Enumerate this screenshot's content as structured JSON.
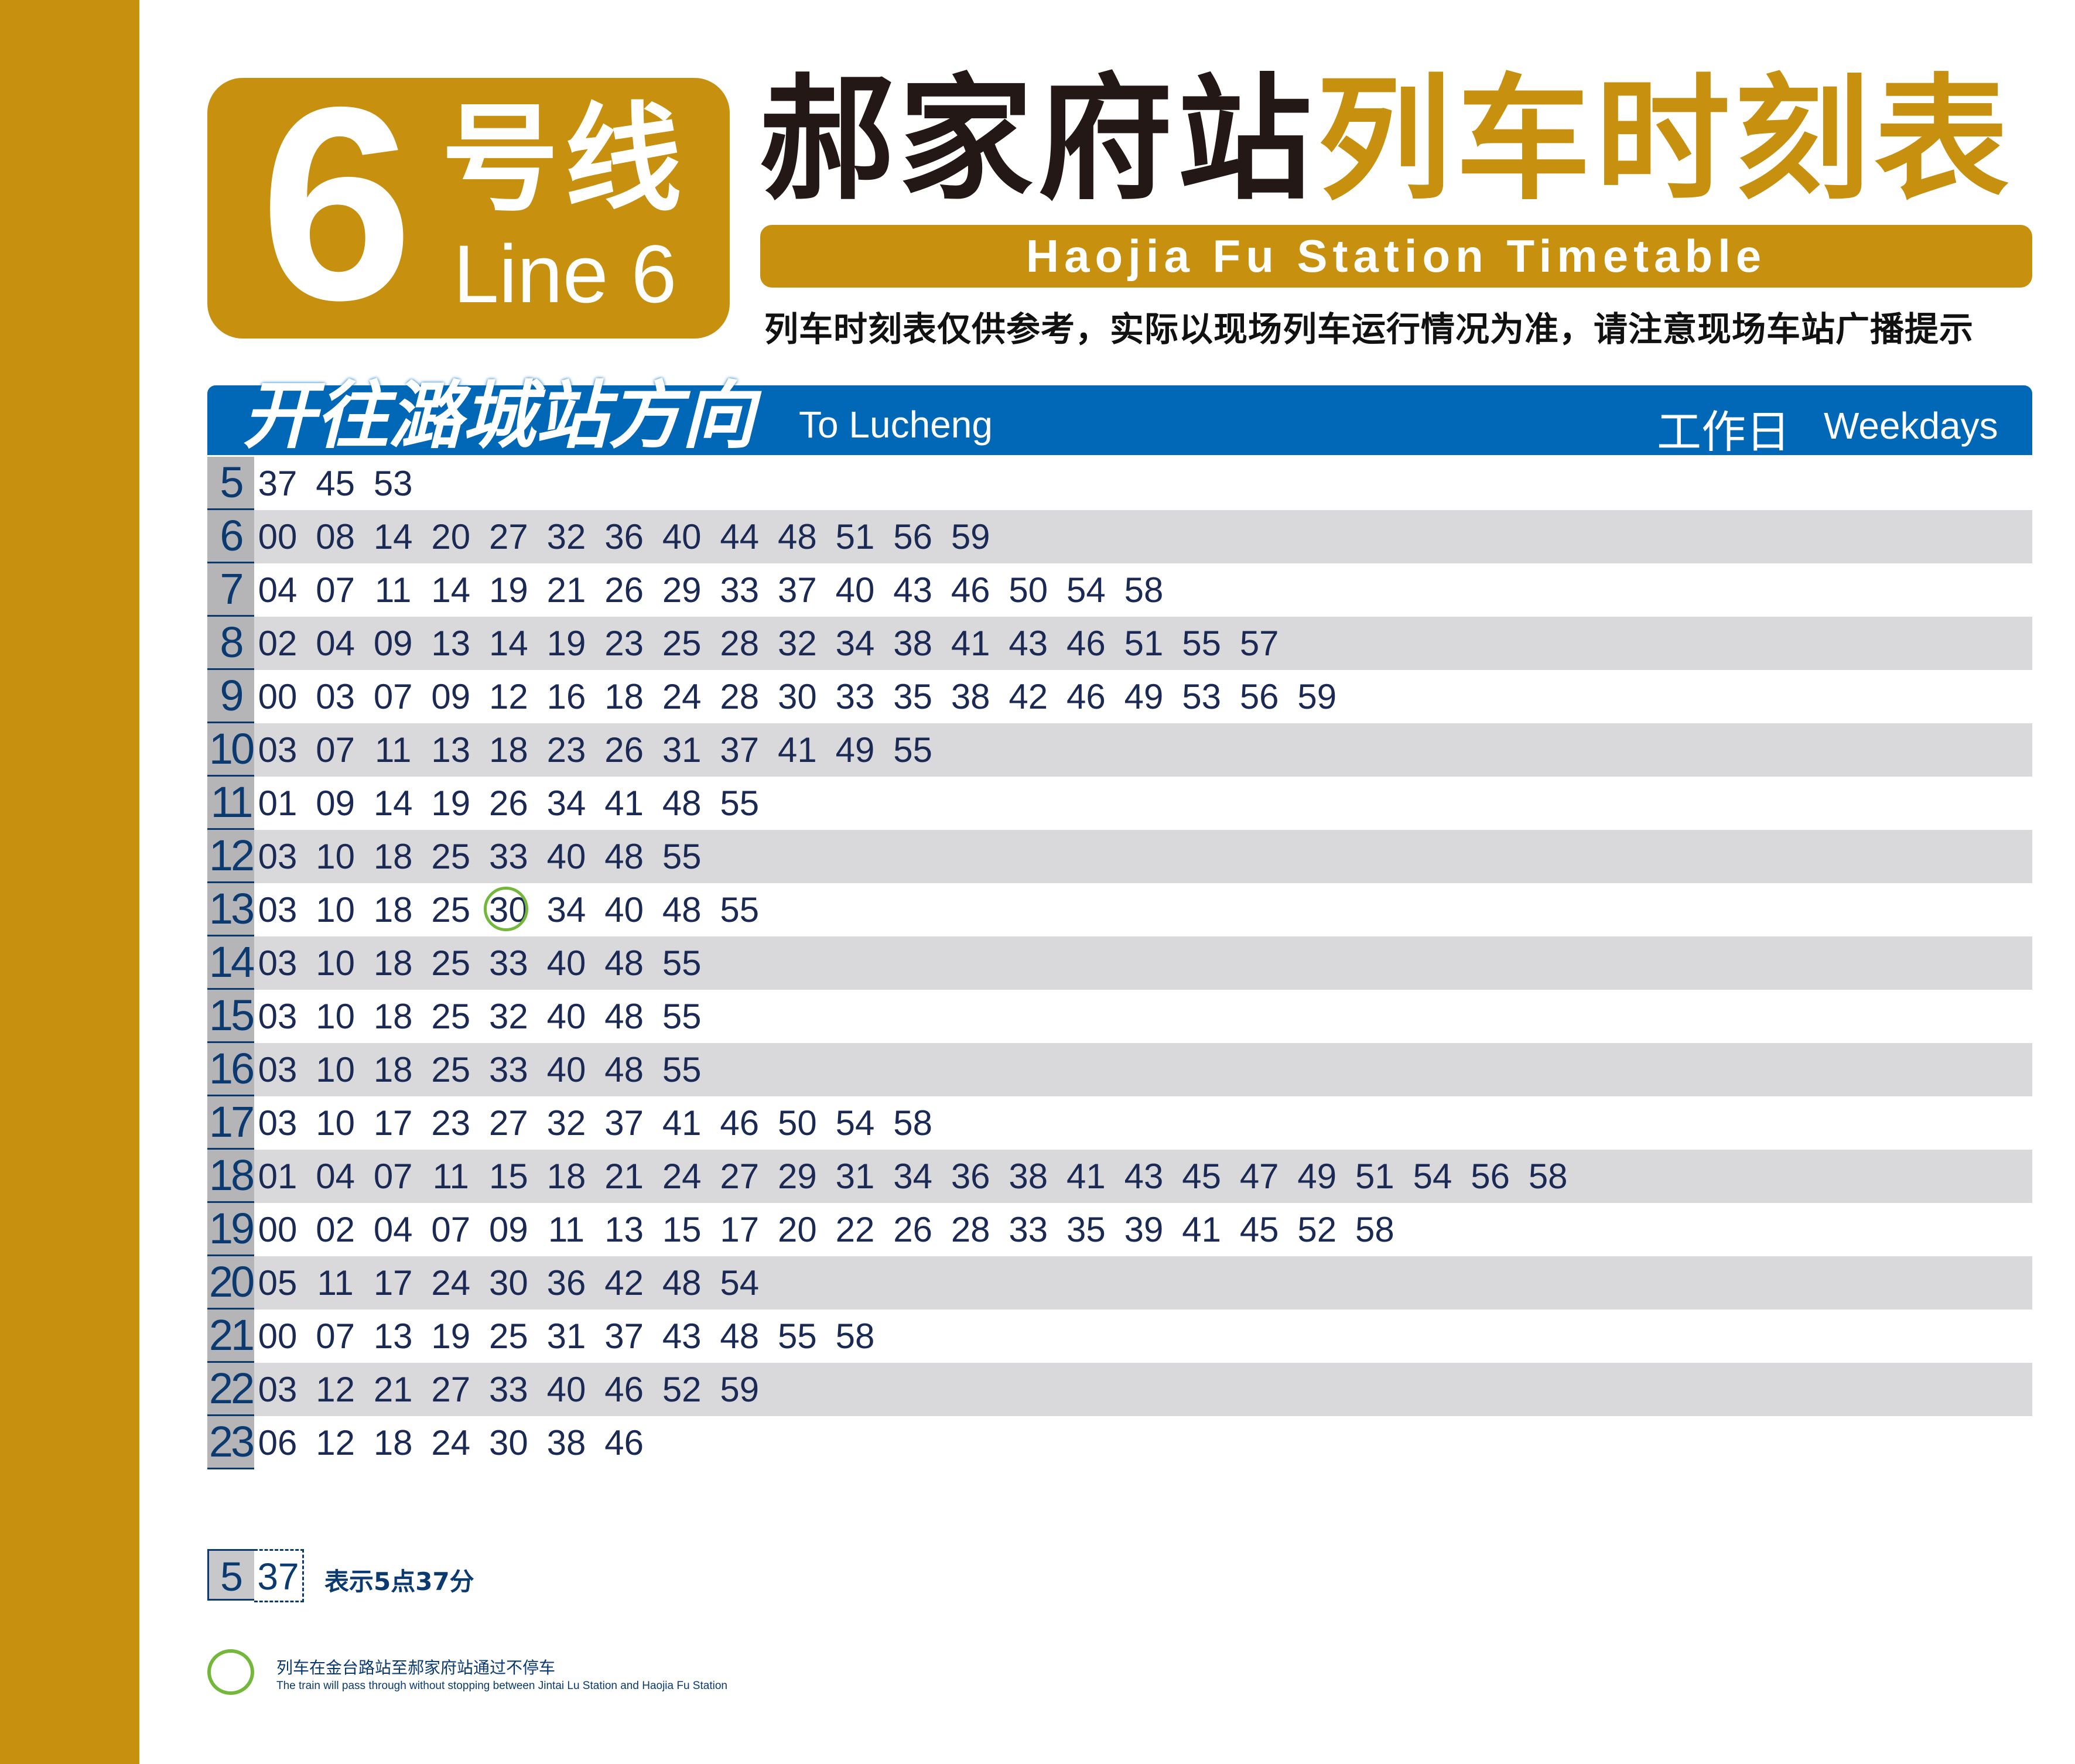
{
  "colors": {
    "gold": "#C8900F",
    "blue": "#0068B7",
    "navy": "#0A3A70",
    "skip_circle": "#73B83A",
    "stripe": "#D9D9DB",
    "title_black": "#231815"
  },
  "logo": {
    "line_number": "6",
    "line_cn": "号线",
    "line_en": "Line 6"
  },
  "title": {
    "station_cn": "郝家府站",
    "timetable_cn": "列车时刻表",
    "en": "Haojia Fu Station Timetable"
  },
  "notice": "列车时刻表仅供参考，实际以现场列车运行情况为准，请注意现场车站广播提示",
  "direction": {
    "cn": "开往潞城站方向",
    "en": "To Lucheng",
    "day_cn": "工作日",
    "day_en": "Weekdays"
  },
  "timetable": [
    {
      "hour": "5",
      "minutes": [
        "37",
        "45",
        "53"
      ]
    },
    {
      "hour": "6",
      "minutes": [
        "00",
        "08",
        "14",
        "20",
        "27",
        "32",
        "36",
        "40",
        "44",
        "48",
        "51",
        "56",
        "59"
      ]
    },
    {
      "hour": "7",
      "minutes": [
        "04",
        "07",
        "11",
        "14",
        "19",
        "21",
        "26",
        "29",
        "33",
        "37",
        "40",
        "43",
        "46",
        "50",
        "54",
        "58"
      ]
    },
    {
      "hour": "8",
      "minutes": [
        "02",
        "04",
        "09",
        "13",
        "14",
        "19",
        "23",
        "25",
        "28",
        "32",
        "34",
        "38",
        "41",
        "43",
        "46",
        "51",
        "55",
        "57"
      ]
    },
    {
      "hour": "9",
      "minutes": [
        "00",
        "03",
        "07",
        "09",
        "12",
        "16",
        "18",
        "24",
        "28",
        "30",
        "33",
        "35",
        "38",
        "42",
        "46",
        "49",
        "53",
        "56",
        "59"
      ]
    },
    {
      "hour": "10",
      "minutes": [
        "03",
        "07",
        "11",
        "13",
        "18",
        "23",
        "26",
        "31",
        "37",
        "41",
        "49",
        "55"
      ]
    },
    {
      "hour": "11",
      "minutes": [
        "01",
        "09",
        "14",
        "19",
        "26",
        "34",
        "41",
        "48",
        "55"
      ]
    },
    {
      "hour": "12",
      "minutes": [
        "03",
        "10",
        "18",
        "25",
        "33",
        "40",
        "48",
        "55"
      ]
    },
    {
      "hour": "13",
      "minutes": [
        "03",
        "10",
        "18",
        "25",
        "30",
        "34",
        "40",
        "48",
        "55"
      ],
      "pass_through": [
        "30"
      ]
    },
    {
      "hour": "14",
      "minutes": [
        "03",
        "10",
        "18",
        "25",
        "33",
        "40",
        "48",
        "55"
      ]
    },
    {
      "hour": "15",
      "minutes": [
        "03",
        "10",
        "18",
        "25",
        "32",
        "40",
        "48",
        "55"
      ]
    },
    {
      "hour": "16",
      "minutes": [
        "03",
        "10",
        "18",
        "25",
        "33",
        "40",
        "48",
        "55"
      ]
    },
    {
      "hour": "17",
      "minutes": [
        "03",
        "10",
        "17",
        "23",
        "27",
        "32",
        "37",
        "41",
        "46",
        "50",
        "54",
        "58"
      ]
    },
    {
      "hour": "18",
      "minutes": [
        "01",
        "04",
        "07",
        "11",
        "15",
        "18",
        "21",
        "24",
        "27",
        "29",
        "31",
        "34",
        "36",
        "38",
        "41",
        "43",
        "45",
        "47",
        "49",
        "51",
        "54",
        "56",
        "58"
      ]
    },
    {
      "hour": "19",
      "minutes": [
        "00",
        "02",
        "04",
        "07",
        "09",
        "11",
        "13",
        "15",
        "17",
        "20",
        "22",
        "26",
        "28",
        "33",
        "35",
        "39",
        "41",
        "45",
        "52",
        "58"
      ]
    },
    {
      "hour": "20",
      "minutes": [
        "05",
        "11",
        "17",
        "24",
        "30",
        "36",
        "42",
        "48",
        "54"
      ]
    },
    {
      "hour": "21",
      "minutes": [
        "00",
        "07",
        "13",
        "19",
        "25",
        "31",
        "37",
        "43",
        "48",
        "55",
        "58"
      ]
    },
    {
      "hour": "22",
      "minutes": [
        "03",
        "12",
        "21",
        "27",
        "33",
        "40",
        "46",
        "52",
        "59"
      ]
    },
    {
      "hour": "23",
      "minutes": [
        "06",
        "12",
        "18",
        "24",
        "30",
        "38",
        "46"
      ]
    }
  ],
  "legend": {
    "example_hour": "5",
    "example_minute": "37",
    "example_text": "表示5点37分",
    "pass_cn": "列车在金台路站至郝家府站通过不停车",
    "pass_en": "The train will pass through without stopping between Jintai Lu Station and Haojia Fu Station"
  }
}
